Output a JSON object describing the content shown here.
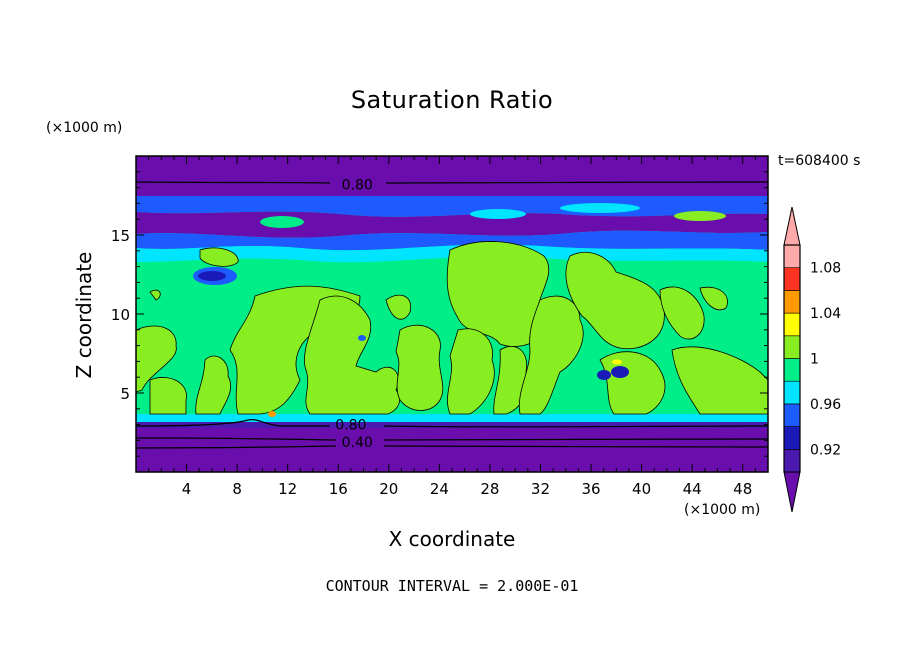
{
  "chart_data": {
    "type": "heatmap",
    "title": "Saturation Ratio",
    "xlabel": "X coordinate",
    "ylabel": "Z coordinate",
    "x_unit": "(×1000 m)",
    "y_unit": "(×1000 m)",
    "time_label": "t=608400 s",
    "footer": "CONTOUR INTERVAL = 2.000E-01",
    "xlim": [
      0,
      50
    ],
    "ylim": [
      0,
      20
    ],
    "x_ticks": [
      4,
      8,
      12,
      16,
      20,
      24,
      28,
      32,
      36,
      40,
      44,
      48
    ],
    "y_ticks": [
      5,
      10,
      15
    ],
    "colorbar": {
      "boundaries": [
        0.9,
        0.92,
        0.94,
        0.96,
        0.98,
        1.0,
        1.02,
        1.04,
        1.06,
        1.08,
        1.1
      ],
      "tick_labels": [
        "1.08",
        "1.04",
        "1",
        "0.96",
        "0.92"
      ],
      "tick_values": [
        1.08,
        1.04,
        1.0,
        0.96,
        0.92
      ],
      "colors": [
        "#6a0dad",
        "#4a19b0",
        "#1a1ab8",
        "#1e5bff",
        "#00e5ff",
        "#00ee88",
        "#88ee22",
        "#ffff00",
        "#ff9900",
        "#ff3322",
        "#ffaaaa"
      ],
      "extend": "both"
    },
    "contour_labels": [
      {
        "text": "0.80",
        "x": 17.5,
        "z": 18.2
      },
      {
        "text": "0.80",
        "x": 17.0,
        "z": 3.0
      },
      {
        "text": "0.40",
        "x": 17.5,
        "z": 1.9
      }
    ],
    "layers": [
      {
        "z_range": [
          0,
          3.5
        ],
        "value": "< 0.90"
      },
      {
        "z_range": [
          3.5,
          13.5
        ],
        "value": "0.98 – 1.02"
      },
      {
        "z_range": [
          13.5,
          17.5
        ],
        "value": "0.90 – 0.98"
      },
      {
        "z_range": [
          17.5,
          20
        ],
        "value": "< 0.90"
      }
    ]
  }
}
